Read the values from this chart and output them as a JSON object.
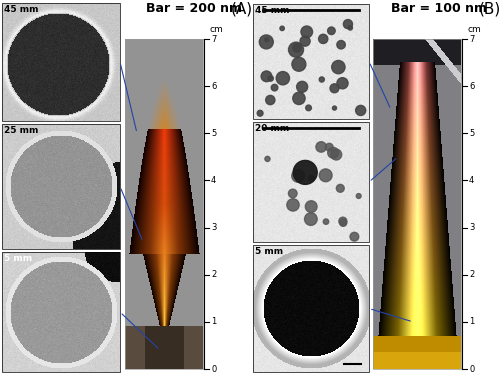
{
  "fig_width": 5.0,
  "fig_height": 3.77,
  "dpi": 100,
  "background": "#ffffff",
  "panel_A_label": "(A)",
  "panel_B_label": "(B)",
  "bar_A": "Bar = 200 nm",
  "bar_B": "Bar = 100 nm",
  "label_A_top": "45 mm",
  "label_A_mid": "25 mm",
  "label_A_bot": "5 mm",
  "label_B_top": "45 mm",
  "label_B_mid": "20 mm",
  "label_B_bot": "5 mm",
  "axis_label": "cm",
  "axis_ticks": [
    0,
    1,
    2,
    3,
    4,
    5,
    6,
    7
  ],
  "line_color": "#2244aa",
  "label_fontsize": 6.5,
  "bar_fontsize": 9,
  "panel_fontsize": 11,
  "axis_fontsize": 6.5,
  "tem_a_bg": 0.82,
  "tem_a_circle": 0.62,
  "tem_a_dark_bg": 0.8,
  "tem_b_bg": 0.88,
  "flame_a_bg": [
    0.58,
    0.58,
    0.58
  ],
  "flame_b_bg": [
    0.55,
    0.55,
    0.6
  ]
}
